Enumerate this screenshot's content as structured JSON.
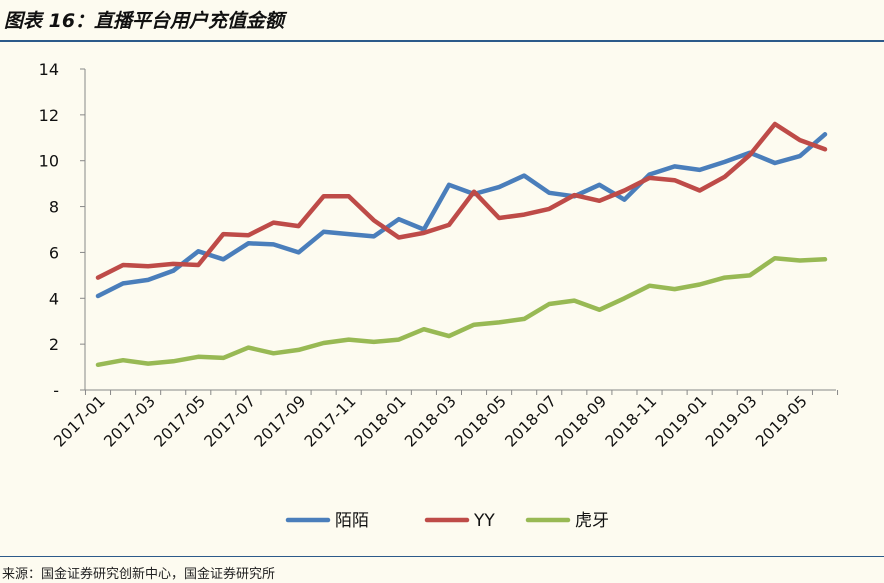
{
  "header": {
    "title": "图表 16：直播平台用户充值金额"
  },
  "footer": {
    "source": "来源：国金证券研究创新中心，国金证券研究所"
  },
  "colors": {
    "momo": "#4a7ebb",
    "yy": "#be4b48",
    "huya": "#98b954",
    "axis": "#888888",
    "rule": "#2c5a8a"
  },
  "chart_data": {
    "type": "line",
    "title": "直播平台用户充值金额",
    "xlabel": "",
    "ylabel": "",
    "ylim": [
      0,
      14
    ],
    "y_ticks": [
      {
        "value": 0,
        "label": "-"
      },
      {
        "value": 2,
        "label": "2"
      },
      {
        "value": 4,
        "label": "4"
      },
      {
        "value": 6,
        "label": "6"
      },
      {
        "value": 8,
        "label": "8"
      },
      {
        "value": 10,
        "label": "10"
      },
      {
        "value": 12,
        "label": "12"
      },
      {
        "value": 14,
        "label": "14"
      }
    ],
    "x_tick_labels": [
      "2017-01",
      "2017-03",
      "2017-05",
      "2017-07",
      "2017-09",
      "2017-11",
      "2018-01",
      "2018-03",
      "2018-05",
      "2018-07",
      "2018-09",
      "2018-11",
      "2019-01",
      "2019-03",
      "2019-05"
    ],
    "legend_position": "bottom",
    "categories": [
      "2017-01",
      "2017-02",
      "2017-03",
      "2017-04",
      "2017-05",
      "2017-06",
      "2017-07",
      "2017-08",
      "2017-09",
      "2017-10",
      "2017-11",
      "2017-12",
      "2018-01",
      "2018-02",
      "2018-03",
      "2018-04",
      "2018-05",
      "2018-06",
      "2018-07",
      "2018-08",
      "2018-09",
      "2018-10",
      "2018-11",
      "2018-12",
      "2019-01",
      "2019-02",
      "2019-03",
      "2019-04",
      "2019-05",
      "2019-06"
    ],
    "series": [
      {
        "name": "陌陌",
        "color_key": "momo",
        "values": [
          4.1,
          4.65,
          4.8,
          5.2,
          6.05,
          5.7,
          6.4,
          6.35,
          6.0,
          6.9,
          6.8,
          6.7,
          7.45,
          7.0,
          8.95,
          8.55,
          8.85,
          9.35,
          8.6,
          8.45,
          8.95,
          8.3,
          9.4,
          9.75,
          9.6,
          9.95,
          10.35,
          9.9,
          10.2,
          11.15
        ]
      },
      {
        "name": "YY",
        "color_key": "yy",
        "values": [
          4.9,
          5.45,
          5.4,
          5.5,
          5.45,
          6.8,
          6.75,
          7.3,
          7.15,
          8.45,
          8.45,
          7.4,
          6.65,
          6.85,
          7.2,
          8.65,
          7.5,
          7.65,
          7.9,
          8.5,
          8.25,
          8.7,
          9.25,
          9.15,
          8.7,
          9.3,
          10.25,
          11.6,
          10.9,
          10.5
        ]
      },
      {
        "name": "虎牙",
        "color_key": "huya",
        "values": [
          1.1,
          1.3,
          1.15,
          1.25,
          1.45,
          1.4,
          1.85,
          1.6,
          1.75,
          2.05,
          2.2,
          2.1,
          2.2,
          2.65,
          2.35,
          2.85,
          2.95,
          3.1,
          3.75,
          3.9,
          3.5,
          4.0,
          4.55,
          4.4,
          4.6,
          4.9,
          5.0,
          5.75,
          5.65,
          5.7
        ]
      }
    ]
  }
}
